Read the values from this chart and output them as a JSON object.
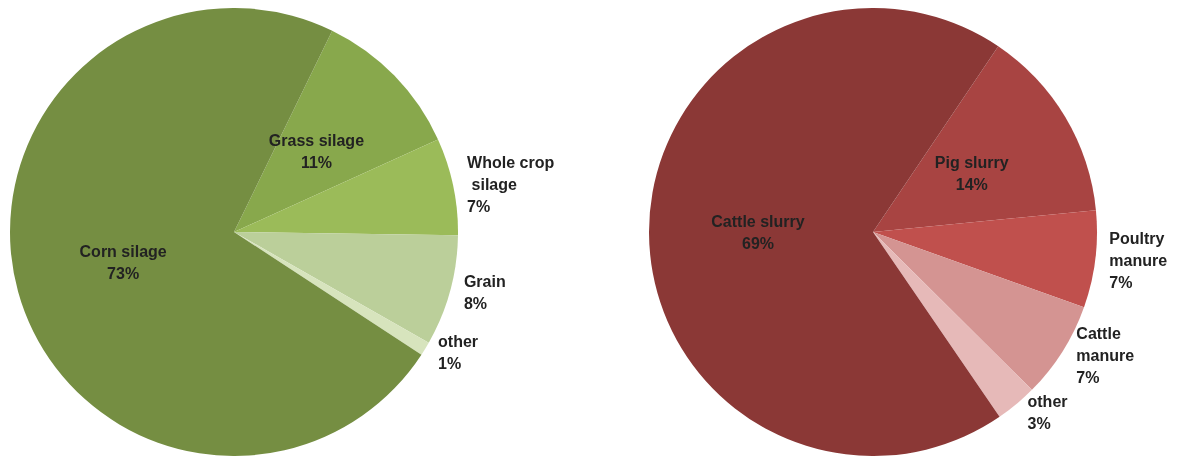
{
  "chart_data": [
    {
      "type": "pie",
      "categories": [
        "Grass silage",
        "Whole crop silage",
        "Grain",
        "other",
        "Corn silage"
      ],
      "values": [
        11,
        7,
        8,
        1,
        73
      ],
      "value_labels": [
        "11%",
        "7%",
        "8%",
        "1%",
        "73%"
      ],
      "colors": [
        "#88a84c",
        "#9bbb59",
        "#bbcf9a",
        "#d7e4bd",
        "#758e42"
      ]
    },
    {
      "type": "pie",
      "categories": [
        "Pig slurry",
        "Poultry manure",
        "Cattle manure",
        "other",
        "Cattle slurry"
      ],
      "values": [
        14,
        7,
        7,
        3,
        69
      ],
      "value_labels": [
        "14%",
        "7%",
        "7%",
        "3%",
        "69%"
      ],
      "colors": [
        "#a84442",
        "#c0504d",
        "#d49492",
        "#e6b9b8",
        "#8b3836"
      ]
    }
  ]
}
